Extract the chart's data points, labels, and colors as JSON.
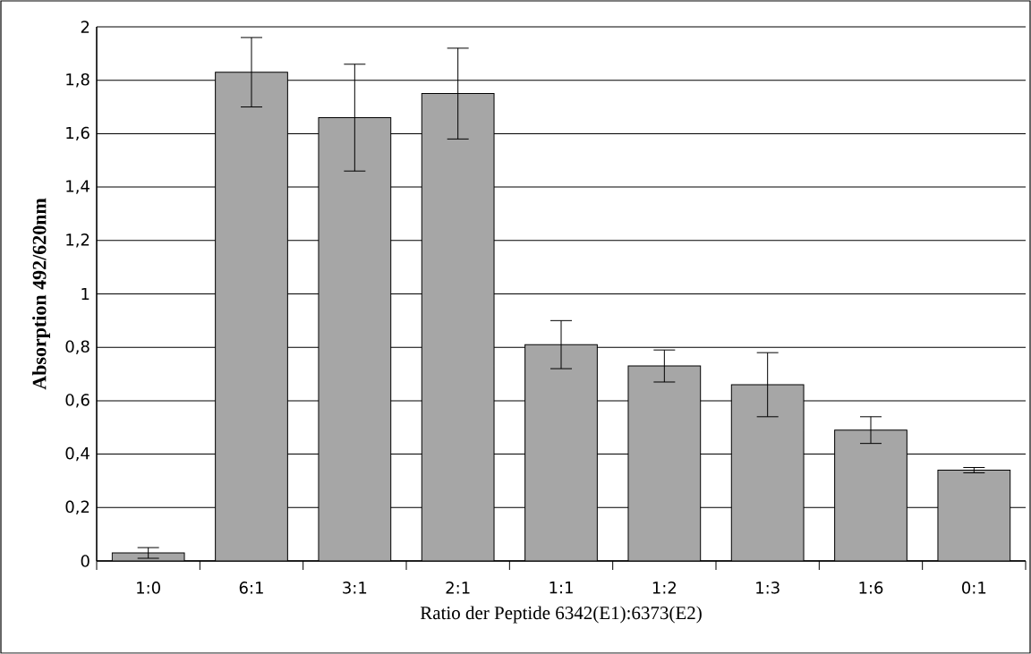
{
  "chart_data": {
    "type": "bar",
    "xlabel": "Ratio der Peptide 6342(E1):6373(E2)",
    "ylabel": "Absorption 492/620nm",
    "categories": [
      "1:0",
      "6:1",
      "3:1",
      "2:1",
      "1:1",
      "1:2",
      "1:3",
      "1:6",
      "0:1"
    ],
    "values": [
      0.03,
      1.83,
      1.66,
      1.75,
      0.81,
      0.73,
      0.66,
      0.49,
      0.34
    ],
    "errors": [
      0.02,
      0.13,
      0.2,
      0.17,
      0.09,
      0.06,
      0.12,
      0.05,
      0.01
    ],
    "color": "#a6a6a6",
    "ylim": [
      0,
      2
    ],
    "yticks": [
      0,
      {
        "value": 0.2,
        "label": "0,2"
      },
      {
        "value": 0.4,
        "label": "0,4"
      },
      {
        "value": 0.6,
        "label": "0,6"
      },
      {
        "value": 0.8,
        "label": "0,8"
      },
      1,
      {
        "value": 1.2,
        "label": "1,2"
      },
      {
        "value": 1.4,
        "label": "1,4"
      },
      {
        "value": 1.6,
        "label": "1,6"
      },
      {
        "value": 1.8,
        "label": "1,8"
      },
      2
    ],
    "grid": "y"
  }
}
